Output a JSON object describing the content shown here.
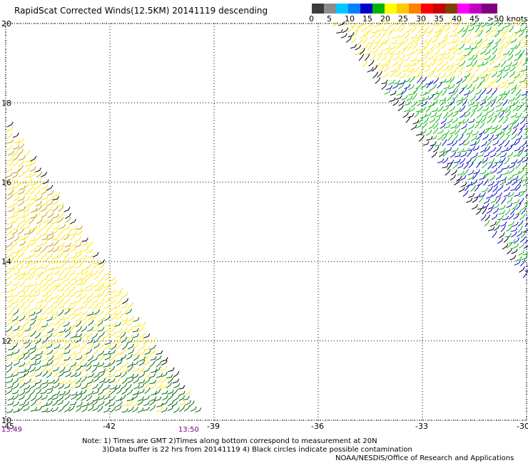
{
  "title": "RapidScat Corrected Winds(12.5KM) 20141119 descending",
  "colorbar": {
    "colors": [
      "#3c3c3c",
      "#8c8c8c",
      "#00c8ff",
      "#0080ff",
      "#0000c8",
      "#00b400",
      "#ffff00",
      "#ffc800",
      "#ff8000",
      "#ff0000",
      "#c80000",
      "#804000",
      "#ff00ff",
      "#c000c0",
      "#800080"
    ],
    "labels": [
      "0",
      "5",
      "10",
      "15",
      "20",
      "25",
      "30",
      "35",
      "40",
      "45",
      ">50 knots"
    ],
    "unit": "knots"
  },
  "axes": {
    "lat_labels": [
      "20",
      "18",
      "16",
      "14",
      "12",
      "10"
    ],
    "lon_labels": [
      "-45",
      "-42",
      "-39",
      "-36",
      "-33",
      "-30"
    ],
    "lat_range": [
      10,
      20
    ],
    "lon_range": [
      -45,
      -30
    ],
    "grid": "dotted"
  },
  "times": {
    "left": "13:49",
    "right": "13:50"
  },
  "note": {
    "line1": "Note: 1) Times are GMT 2)Times along bottom correspond to measurement at 20N",
    "line2": "3)Data buffer is 22 hrs from 20141119 4) Black circles indicate possible contamination"
  },
  "credit": "NOAA/NESDIS/Office of Research and Applications",
  "colors": {
    "yellow": "#ffe600",
    "dark_green": "#006400",
    "green": "#00b400",
    "blue": "#0000c8",
    "orange": "#c89600",
    "black": "#000000"
  }
}
